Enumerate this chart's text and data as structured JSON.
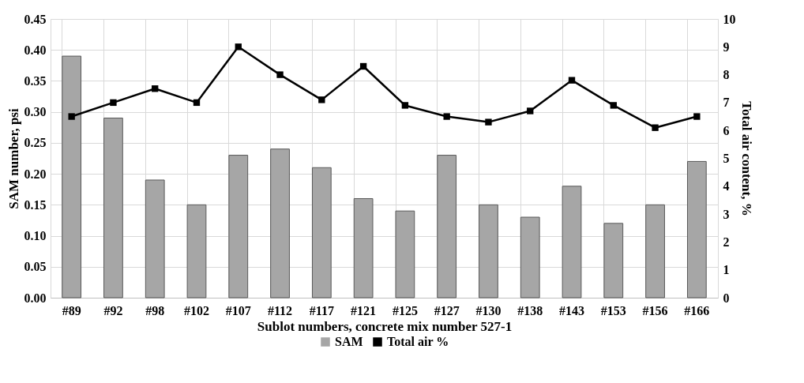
{
  "chart_data": {
    "type": "bar",
    "xlabel": "Sublot numbers, concrete mix number 527-1",
    "ylabel": "SAM number, psi",
    "y2label": "Total air content, %",
    "categories": [
      "#89",
      "#92",
      "#98",
      "#102",
      "#107",
      "#112",
      "#117",
      "#121",
      "#125",
      "#127",
      "#130",
      "#138",
      "#143",
      "#153",
      "#156",
      "#166"
    ],
    "series": [
      {
        "name": "SAM",
        "color": "#a6a6a6",
        "values": [
          0.39,
          0.29,
          0.19,
          0.15,
          0.23,
          0.24,
          0.21,
          0.16,
          0.14,
          0.23,
          0.15,
          0.13,
          0.18,
          0.12,
          0.15,
          0.22
        ]
      },
      {
        "name": "Total air %",
        "type": "line",
        "axis": "y2",
        "color": "#000000",
        "marker": "square",
        "values": [
          6.5,
          7.0,
          7.5,
          7.0,
          9.0,
          8.0,
          7.1,
          8.3,
          6.9,
          6.5,
          6.3,
          6.7,
          7.8,
          6.9,
          6.1,
          6.5
        ]
      }
    ],
    "ylim": [
      0,
      0.45
    ],
    "yticks": [
      {
        "value": 0,
        "label": "0.00"
      },
      {
        "value": 0.05,
        "label": "0.05"
      },
      {
        "value": 0.1,
        "label": "0.10"
      },
      {
        "value": 0.15,
        "label": "0.15"
      },
      {
        "value": 0.2,
        "label": "0.20"
      },
      {
        "value": 0.25,
        "label": "0.25"
      },
      {
        "value": 0.3,
        "label": "0.30"
      },
      {
        "value": 0.35,
        "label": "0.35"
      },
      {
        "value": 0.4,
        "label": "0.40"
      },
      {
        "value": 0.45,
        "label": "0.45"
      }
    ],
    "y2lim": [
      0,
      10
    ],
    "y2ticks": [
      0,
      1,
      2,
      3,
      4,
      5,
      6,
      7,
      8,
      9,
      10
    ],
    "grid": true,
    "legend": "bottom"
  }
}
